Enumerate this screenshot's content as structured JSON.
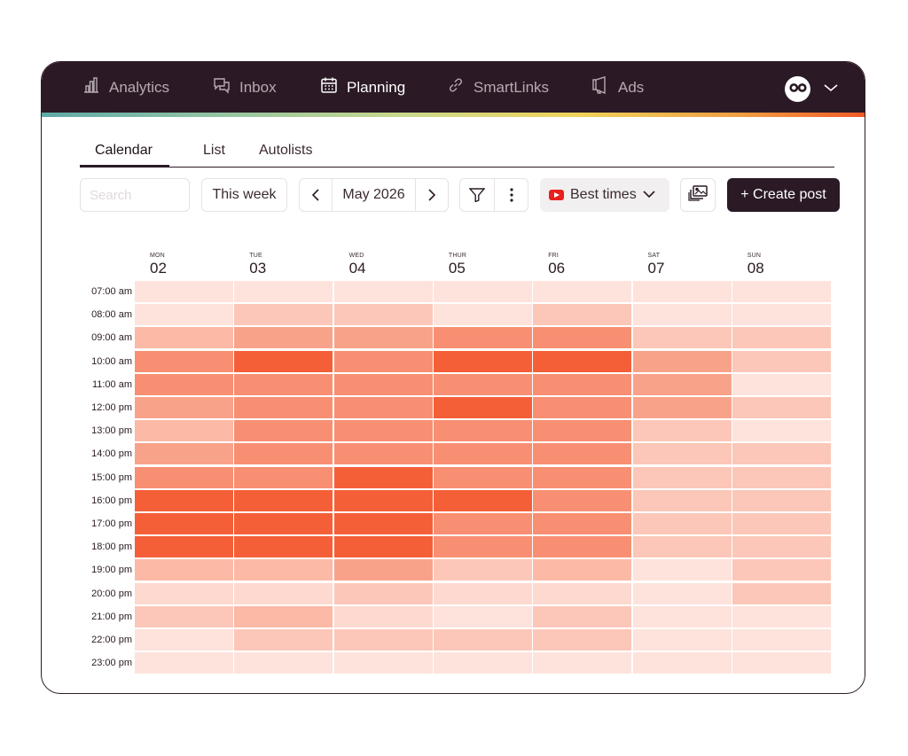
{
  "nav": {
    "items": [
      {
        "label": "Analytics",
        "icon": "bar-chart-icon",
        "active": false
      },
      {
        "label": "Inbox",
        "icon": "chat-bubbles-icon",
        "active": false
      },
      {
        "label": "Planning",
        "icon": "calendar-icon",
        "active": true
      },
      {
        "label": "SmartLinks",
        "icon": "link-icon",
        "active": false
      },
      {
        "label": "Ads",
        "icon": "megaphone-icon",
        "active": false
      }
    ],
    "account_icon": "infinity-logo-icon",
    "account_menu_icon": "chevron-down-icon"
  },
  "tabs": [
    {
      "label": "Calendar",
      "active": true
    },
    {
      "label": "List",
      "active": false
    },
    {
      "label": "Autolists",
      "active": false
    }
  ],
  "toolbar": {
    "search_placeholder": "Search",
    "range_label": "This week",
    "month_label": "May 2026",
    "best_times_label": "Best times",
    "create_label": "+ Create post"
  },
  "days": [
    {
      "abbr": "MON",
      "num": "02"
    },
    {
      "abbr": "TUE",
      "num": "03"
    },
    {
      "abbr": "WED",
      "num": "04"
    },
    {
      "abbr": "THUR",
      "num": "05"
    },
    {
      "abbr": "FRI",
      "num": "06"
    },
    {
      "abbr": "SAT",
      "num": "07"
    },
    {
      "abbr": "SUN",
      "num": "08"
    }
  ],
  "times": [
    "07:00 am",
    "08:00 am",
    "09:00 am",
    "10:00 am",
    "11:00 am",
    "12:00 pm",
    "13:00 pm",
    "14:00 pm",
    "15:00 pm",
    "16:00 pm",
    "17:00 pm",
    "18:00 pm",
    "19:00 pm",
    "20:00 pm",
    "21:00 pm",
    "22:00 pm",
    "23:00 pm"
  ],
  "heatmap_levels": [
    [
      1,
      1,
      1,
      1,
      1,
      1,
      1
    ],
    [
      1,
      3,
      3,
      1,
      3,
      1,
      1
    ],
    [
      4,
      5,
      5,
      6,
      6,
      3,
      3
    ],
    [
      6,
      8,
      6,
      8,
      8,
      5,
      3
    ],
    [
      6,
      6,
      6,
      6,
      6,
      5,
      1
    ],
    [
      5,
      6,
      6,
      8,
      6,
      5,
      3
    ],
    [
      4,
      6,
      6,
      6,
      6,
      3,
      1
    ],
    [
      5,
      6,
      6,
      6,
      6,
      3,
      3
    ],
    [
      6,
      6,
      8,
      6,
      6,
      3,
      3
    ],
    [
      8,
      8,
      8,
      8,
      6,
      3,
      3
    ],
    [
      8,
      8,
      8,
      6,
      6,
      3,
      3
    ],
    [
      8,
      8,
      8,
      6,
      6,
      3,
      3
    ],
    [
      4,
      4,
      5,
      3,
      4,
      1,
      3
    ],
    [
      2,
      2,
      3,
      2,
      2,
      1,
      3
    ],
    [
      3,
      4,
      2,
      1,
      3,
      1,
      1
    ],
    [
      1,
      3,
      3,
      3,
      3,
      1,
      1
    ],
    [
      1,
      1,
      1,
      1,
      1,
      1,
      1
    ]
  ],
  "heat_colors": [
    "#fff5f2",
    "#fde3dc",
    "#fdd9cf",
    "#fcc7b8",
    "#fbb9a6",
    "#f9a28a",
    "#f88f72",
    "#f77a5a",
    "#f55f38"
  ]
}
